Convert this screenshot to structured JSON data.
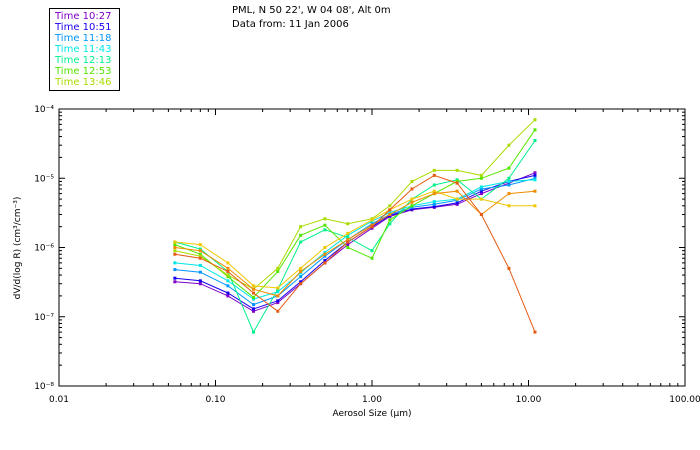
{
  "header": {
    "location": "PML, N 50 22', W 04 08', Alt 0m",
    "date_line": "Data from: 11 Jan 2006"
  },
  "chart_data": {
    "type": "line",
    "xlabel": "Aerosol Size (μm)",
    "ylabel": "dV/d(log R) (cm³/cm⁻³)",
    "xscale": "log",
    "yscale": "log",
    "xlim": [
      0.01,
      100
    ],
    "ylim": [
      1e-08,
      0.0001
    ],
    "x_tick_labels": [
      "0.01",
      "0.10",
      "1.00",
      "10.00",
      "100.00"
    ],
    "x_tick_values": [
      0.01,
      0.1,
      1,
      10,
      100
    ],
    "y_tick_labels": [
      "10⁻⁸",
      "10⁻⁷",
      "10⁻⁶",
      "10⁻⁵",
      "10⁻⁴"
    ],
    "y_tick_values": [
      1e-08,
      1e-07,
      1e-06,
      1e-05,
      0.0001
    ],
    "legend_position": "top-left",
    "x": [
      0.055,
      0.08,
      0.12,
      0.175,
      0.25,
      0.35,
      0.5,
      0.7,
      1.0,
      1.3,
      1.8,
      2.5,
      3.5,
      5.0,
      7.5,
      11.0
    ],
    "series": [
      {
        "name": "Time 10:27",
        "color": "#7f00c8",
        "values": [
          3.2e-07,
          3e-07,
          2e-07,
          1.2e-07,
          1.6e-07,
          3e-07,
          6e-07,
          1.1e-06,
          1.9e-06,
          2.8e-06,
          3.5e-06,
          3.8e-06,
          4.2e-06,
          6e-06,
          8.5e-06,
          1.2e-05
        ]
      },
      {
        "name": "Time 10:51",
        "color": "#1a00f0",
        "values": [
          3.6e-07,
          3.3e-07,
          2.2e-07,
          1.3e-07,
          1.7e-07,
          3.2e-07,
          6.5e-07,
          1.2e-06,
          2e-06,
          2.9e-06,
          3.6e-06,
          3.9e-06,
          4.4e-06,
          6.5e-06,
          9e-06,
          1.1e-05
        ]
      },
      {
        "name": "Time 11:18",
        "color": "#0096ff",
        "values": [
          4.8e-07,
          4.4e-07,
          2.8e-07,
          1.5e-07,
          2e-07,
          3.8e-07,
          7.5e-07,
          1.3e-06,
          2.2e-06,
          3e-06,
          3.8e-06,
          4.2e-06,
          4.8e-06,
          7e-06,
          8e-06,
          1e-05
        ]
      },
      {
        "name": "Time 11:43",
        "color": "#00e6e6",
        "values": [
          6e-07,
          5.5e-07,
          3.3e-07,
          1.8e-07,
          2.3e-07,
          4.3e-07,
          8.5e-07,
          1.5e-06,
          2.4e-06,
          3.2e-06,
          4e-06,
          4.6e-06,
          5e-06,
          7.5e-06,
          9e-06,
          9.5e-06
        ]
      },
      {
        "name": "Time 12:13",
        "color": "#00f08c",
        "values": [
          1.2e-06,
          9.5e-07,
          4.5e-07,
          6e-08,
          2.5e-07,
          1.2e-06,
          1.8e-06,
          1.4e-06,
          9e-07,
          2.2e-06,
          5e-06,
          8e-06,
          9.5e-06,
          5e-06,
          1e-05,
          3.5e-05
        ]
      },
      {
        "name": "Time 12:53",
        "color": "#55e600",
        "values": [
          1.1e-06,
          8e-07,
          3.8e-07,
          1.9e-07,
          4.5e-07,
          1.5e-06,
          2.1e-06,
          1e-06,
          7e-07,
          2.5e-06,
          4e-06,
          6e-06,
          9e-06,
          1e-05,
          1.4e-05,
          5e-05
        ]
      },
      {
        "name": "Time 13:46",
        "color": "#aadc00",
        "values": [
          9e-07,
          7.5e-07,
          4e-07,
          2.5e-07,
          5e-07,
          2e-06,
          2.6e-06,
          2.2e-06,
          2.6e-06,
          4e-06,
          9e-06,
          1.3e-05,
          1.3e-05,
          1.1e-05,
          3e-05,
          7e-05
        ]
      },
      {
        "name": "",
        "color": "#f0c800",
        "values": [
          1.2e-06,
          1.1e-06,
          6e-07,
          2.8e-07,
          2.6e-07,
          5e-07,
          1e-06,
          1.6e-06,
          2.5e-06,
          3.5e-06,
          5e-06,
          6.5e-06,
          5e-06,
          5e-06,
          4e-06,
          4e-06
        ]
      },
      {
        "name": "",
        "color": "#f08c00",
        "values": [
          1e-06,
          9e-07,
          5e-07,
          2.5e-07,
          2e-07,
          4.5e-07,
          8e-07,
          1.3e-06,
          2.1e-06,
          3e-06,
          4.5e-06,
          6e-06,
          6.5e-06,
          3e-06,
          6e-06,
          6.5e-06
        ]
      },
      {
        "name": "",
        "color": "#e65a14",
        "values": [
          8e-07,
          7e-07,
          4.5e-07,
          2.2e-07,
          1.2e-07,
          3e-07,
          6e-07,
          1.2e-06,
          2e-06,
          3.5e-06,
          7e-06,
          1.1e-05,
          8.5e-06,
          3e-06,
          5e-07,
          6e-08
        ]
      }
    ]
  }
}
